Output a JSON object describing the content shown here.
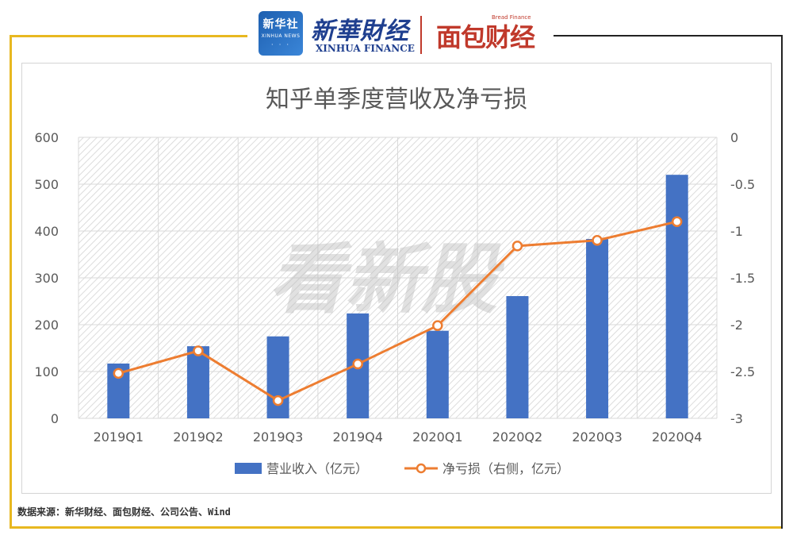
{
  "branding": {
    "xinhua_seal_text": "新华社",
    "xinhua_seal_en": "XINHUA NEWS",
    "xinhua_brand_cn": "新華財经",
    "xinhua_brand_en": "XINHUA FINANCE",
    "bread_brand_cn": "面包财经",
    "bread_brand_en": "Bread Finance",
    "watermark": "看新股"
  },
  "colors": {
    "bar": "#4472c4",
    "line": "#ed7d31",
    "frame": "#e8b820",
    "gridline": "#d9d9d9",
    "axis_text": "#595959"
  },
  "chart_data": {
    "type": "bar",
    "title": "知乎单季度营收及净亏损",
    "categories": [
      "2019Q1",
      "2019Q2",
      "2019Q3",
      "2019Q4",
      "2020Q1",
      "2020Q2",
      "2020Q3",
      "2020Q4"
    ],
    "series": [
      {
        "name": "营业收入（亿元）",
        "type": "bar",
        "axis": "left",
        "values": [
          117,
          154,
          175,
          224,
          187,
          261,
          383,
          520
        ]
      },
      {
        "name": "净亏损（右侧，亿元）",
        "type": "line",
        "axis": "right",
        "values": [
          -2.52,
          -2.28,
          -2.81,
          -2.42,
          -2.01,
          -1.16,
          -1.1,
          -0.9
        ]
      }
    ],
    "y_left": {
      "lim": [
        0,
        600
      ],
      "ticks": [
        "0",
        "100",
        "200",
        "300",
        "400",
        "500",
        "600"
      ]
    },
    "y_right": {
      "lim": [
        -3,
        0
      ],
      "ticks": [
        "-3",
        "-2.5",
        "-2",
        "-1.5",
        "-1",
        "-0.5",
        "0"
      ]
    },
    "grid": true,
    "legend_position": "bottom"
  },
  "footer": {
    "source": "数据来源：新华财经、面包财经、公司公告、Wind"
  }
}
